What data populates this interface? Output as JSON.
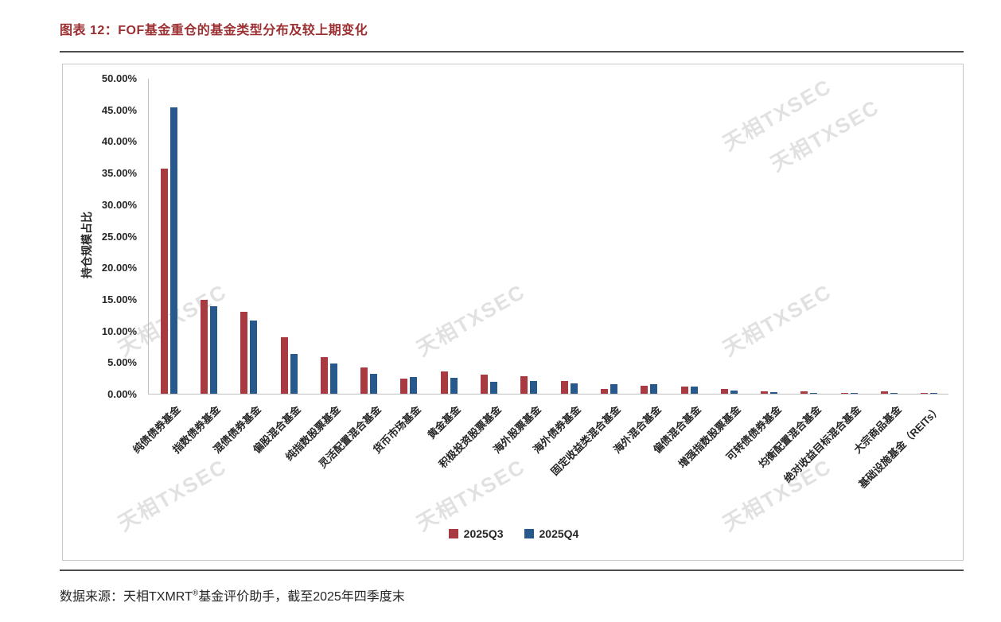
{
  "page": {
    "title": "图表 12：FOF基金重仓的基金类型分布及较上期变化",
    "source_prefix": "数据来源：天相TXMRT",
    "source_sup": "®",
    "source_suffix": "基金评价助手，截至2025年四季度末",
    "watermark_text": "天相TXSEC"
  },
  "chart_data": {
    "type": "bar",
    "title": "",
    "xlabel": "",
    "ylabel": "持仓规模占比",
    "ylim": [
      0,
      50
    ],
    "grid": false,
    "legend_position": "bottom",
    "yticks": [
      "50.00%",
      "45.00%",
      "40.00%",
      "35.00%",
      "30.00%",
      "25.00%",
      "20.00%",
      "15.00%",
      "10.00%",
      "5.00%",
      "0.00%"
    ],
    "categories": [
      "纯债债券基金",
      "指数债券基金",
      "混债债券基金",
      "偏股混合基金",
      "纯指数股票基金",
      "灵活配置混合基金",
      "货币市场基金",
      "黄金基金",
      "积极投资股票基金",
      "海外股票基金",
      "海外债券基金",
      "固定收益类混合基金",
      "海外混合基金",
      "偏债混合基金",
      "增强指数股票基金",
      "可转债债券基金",
      "均衡配置混合基金",
      "绝对收益目标混合基金",
      "大宗商品基金",
      "基础设施基金（REITs）"
    ],
    "series": [
      {
        "name": "2025Q3",
        "color": "#a93a42",
        "values": [
          35.6,
          14.9,
          13.0,
          8.9,
          5.8,
          4.1,
          2.4,
          3.5,
          3.0,
          2.8,
          2.0,
          0.7,
          1.2,
          1.1,
          0.7,
          0.35,
          0.4,
          0.15,
          0.4,
          0.05
        ]
      },
      {
        "name": "2025Q4",
        "color": "#27598c",
        "values": [
          45.3,
          13.8,
          11.6,
          6.3,
          4.8,
          3.2,
          2.7,
          2.5,
          1.9,
          2.0,
          1.7,
          1.5,
          1.5,
          1.1,
          0.5,
          0.2,
          0.15,
          0.15,
          0.1,
          0.15
        ]
      }
    ]
  }
}
